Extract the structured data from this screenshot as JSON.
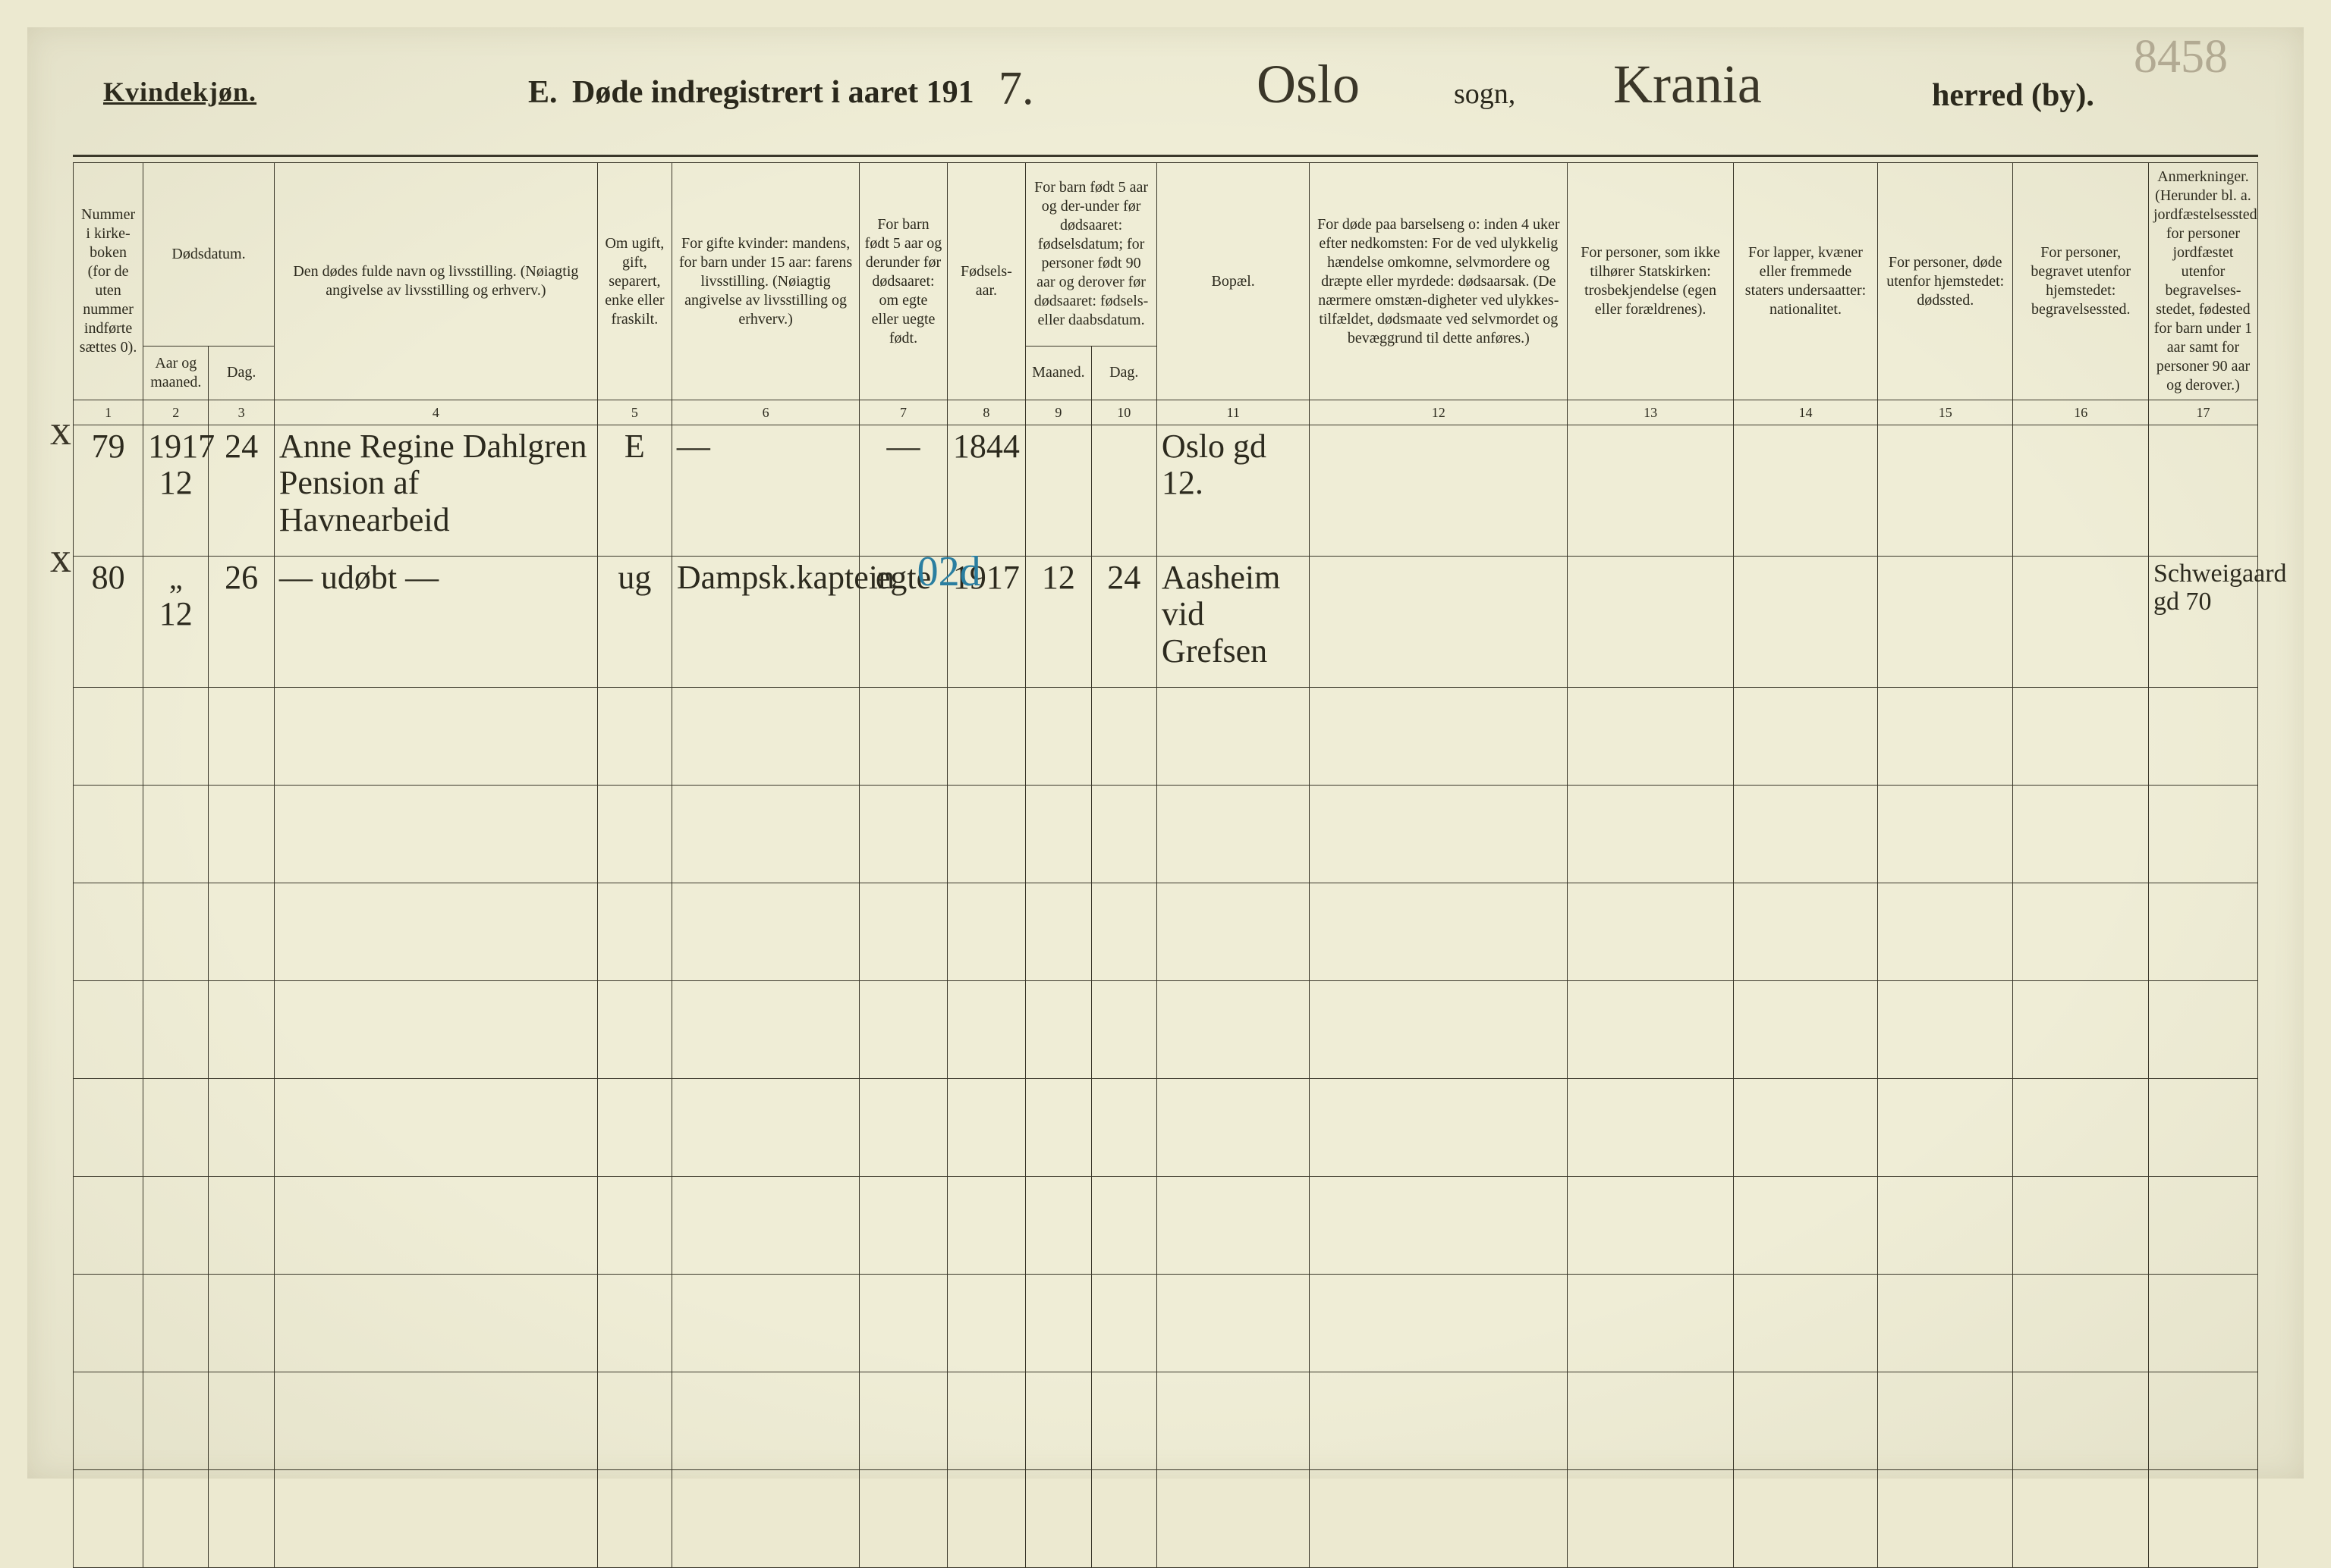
{
  "header": {
    "kvindekjonn": "Kvindekjøn.",
    "title_E": "E.",
    "title_rest": "Døde indregistrert i aaret 191",
    "year_hand": "7.",
    "sogn_hand": "Oslo",
    "sogn_label": "sogn,",
    "herred_hand": "Krania",
    "herred_label": "herred (by).",
    "page_number": "8458"
  },
  "columns": {
    "c1": "Nummer i kirke-boken (for de uten nummer indførte sættes 0).",
    "c2_top": "Dødsdatum.",
    "c2_a": "Aar og maaned.",
    "c2_b": "Dag.",
    "c4": "Den dødes fulde navn og livsstilling.\n(Nøiagtig angivelse av livsstilling og erhverv.)",
    "c5": "Om ugift, gift, separert, enke eller fraskilt.",
    "c6": "For gifte kvinder: mandens,\nfor barn under 15 aar: farens livsstilling.\n(Nøiagtig angivelse av livsstilling og erhverv.)",
    "c7": "For barn født 5 aar og derunder før dødsaaret: om egte eller uegte født.",
    "c8": "Fødsels-aar.",
    "c9_top": "For barn født 5 aar og der-under før dødsaaret: fødselsdatum; for personer født 90 aar og derover før dødsaaret: fødsels- eller daabsdatum.",
    "c9_a": "Maaned.",
    "c9_b": "Dag.",
    "c11": "Bopæl.",
    "c12": "For døde paa barselseng o: inden 4 uker efter nedkomsten:\nFor de ved ulykkelig hændelse omkomne, selvmordere og dræpte eller myrdede: dødsaarsak.\n(De nærmere omstæn-digheter ved ulykkes-tilfældet, dødsmaate ved selvmordet og bevæggrund til dette anføres.)",
    "c13": "For personer, som ikke tilhører Statskirken:\ntrosbekjendelse (egen eller forældrenes).",
    "c14": "For lapper, kvæner eller fremmede staters undersaatter:\nnationalitet.",
    "c15": "For personer, døde utenfor hjemstedet:\ndødssted.",
    "c16": "For personer, begravet utenfor hjemstedet:\nbegravelsessted.",
    "c17": "Anmerkninger.\n(Herunder bl. a. jordfæstelsessted for personer jordfæstet utenfor begravelses-stedet, fødested for barn under 1 aar samt for personer 90 aar og derover.)"
  },
  "colnums": [
    "1",
    "2",
    "3",
    "4",
    "5",
    "6",
    "7",
    "8",
    "9",
    "10",
    "11",
    "12",
    "13",
    "14",
    "15",
    "16",
    "17"
  ],
  "colwidths_pct": [
    3.2,
    3.0,
    3.0,
    14.8,
    3.4,
    8.6,
    4.0,
    3.6,
    3.0,
    3.0,
    7.0,
    11.8,
    7.6,
    6.6,
    6.2,
    6.2,
    5.0
  ],
  "entries": [
    {
      "mark": "x",
      "num": "79",
      "year_line": "1917",
      "month": "12",
      "day": "24",
      "name": "Anne Regine Dahlgren\nPension af Havnearbeid",
      "marital": "E",
      "col6": "—",
      "col7": "—",
      "birthyear": "1844",
      "c9": "",
      "c10": "",
      "bopael": "Oslo gd 12.",
      "remarks": ""
    },
    {
      "mark": "x",
      "num": "80",
      "year_line": "\"",
      "month": "12",
      "day": "26",
      "name": "— udøbt —",
      "marital": "ug",
      "col6": "Dampsk.kaptein",
      "col7": "egte",
      "birthyear": "1917",
      "c9": "12",
      "c10": "24",
      "bopael": "Aasheim\nvid\nGrefsen",
      "remarks": "Schweigaard gd 70",
      "blue_overlay": "02d"
    }
  ],
  "style": {
    "bg": "#efedd6",
    "ink": "#3a372a",
    "blue": "#2a7ea0",
    "hand_font": "Brush Script MT"
  }
}
